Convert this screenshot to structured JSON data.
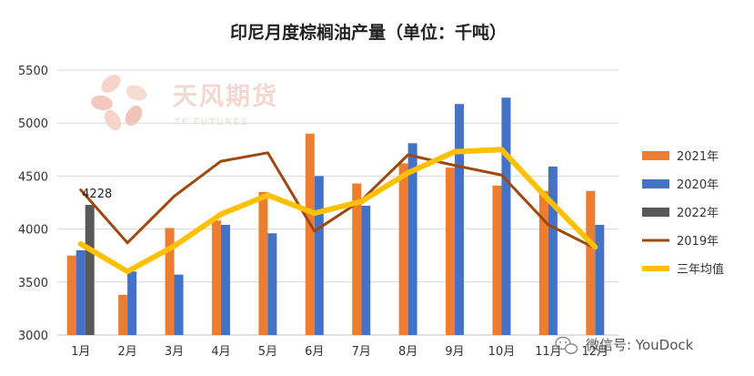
{
  "chart_data": {
    "type": "bar",
    "title": "印尼月度棕榈油产量（单位：千吨）",
    "categories": [
      "1月",
      "2月",
      "3月",
      "4月",
      "5月",
      "6月",
      "7月",
      "8月",
      "9月",
      "10月",
      "11月",
      "12月"
    ],
    "ylim": [
      3000,
      5500
    ],
    "yticks": [
      3000,
      3500,
      4000,
      4500,
      5000,
      5500
    ],
    "grid": true,
    "legend_position": "right",
    "series": [
      {
        "name": "2021年",
        "kind": "bar",
        "color": "#ED7D31",
        "values": [
          3750,
          3380,
          4010,
          4080,
          4350,
          4900,
          4430,
          4620,
          4580,
          4410,
          4360,
          4360
        ]
      },
      {
        "name": "2020年",
        "kind": "bar",
        "color": "#4472C4",
        "values": [
          3800,
          3600,
          3570,
          4040,
          3960,
          4500,
          4220,
          4810,
          5180,
          5240,
          4590,
          4040
        ]
      },
      {
        "name": "2022年",
        "kind": "bar",
        "color": "#595959",
        "values": [
          4228,
          null,
          null,
          null,
          null,
          null,
          null,
          null,
          null,
          null,
          null,
          null
        ]
      },
      {
        "name": "2019年",
        "kind": "line",
        "color": "#9E480E",
        "values": [
          4370,
          3870,
          4310,
          4640,
          4720,
          3980,
          4270,
          4700,
          4600,
          4510,
          4040,
          3820
        ]
      },
      {
        "name": "三年均值",
        "kind": "line",
        "color": "#FFC000",
        "values": [
          3860,
          3600,
          3840,
          4140,
          4320,
          4150,
          4260,
          4530,
          4730,
          4750,
          4280,
          3830
        ]
      }
    ],
    "annotations": [
      {
        "text": "4228",
        "series": "2022年",
        "category": "1月"
      }
    ]
  },
  "watermark": {
    "name": "天风期货",
    "sub": "TF FUTURES"
  },
  "footer": {
    "text": "微信号: YouDock",
    "icon": "wechat-icon"
  }
}
